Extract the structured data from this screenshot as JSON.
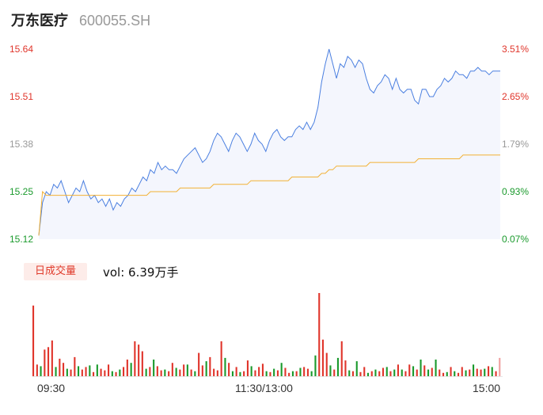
{
  "header": {
    "stock_name": "万东医疗",
    "stock_code": "600055.SH"
  },
  "chart_data": [
    {
      "type": "line",
      "series": [
        {
          "role": "price",
          "color": "#4a7fe0"
        },
        {
          "role": "average",
          "color": "#f2b134"
        }
      ],
      "left_axis_ticks": [
        "15.64",
        "15.51",
        "15.38",
        "15.25",
        "15.12"
      ],
      "right_axis_ticks": [
        "3.51%",
        "2.65%",
        "1.79%",
        "0.93%",
        "0.07%"
      ],
      "ylim": [
        15.12,
        15.64
      ],
      "colors": {
        "up": "#e0352b",
        "down": "#1a9a2c",
        "neutral": "#999999"
      },
      "price": [
        15.13,
        15.22,
        15.25,
        15.24,
        15.27,
        15.26,
        15.28,
        15.25,
        15.22,
        15.24,
        15.26,
        15.25,
        15.28,
        15.25,
        15.23,
        15.24,
        15.22,
        15.23,
        15.21,
        15.23,
        15.2,
        15.22,
        15.21,
        15.23,
        15.24,
        15.26,
        15.25,
        15.27,
        15.29,
        15.28,
        15.31,
        15.3,
        15.33,
        15.31,
        15.32,
        15.31,
        15.31,
        15.3,
        15.32,
        15.34,
        15.35,
        15.36,
        15.37,
        15.35,
        15.33,
        15.34,
        15.36,
        15.39,
        15.41,
        15.4,
        15.38,
        15.36,
        15.39,
        15.41,
        15.4,
        15.38,
        15.36,
        15.38,
        15.41,
        15.39,
        15.38,
        15.36,
        15.39,
        15.41,
        15.42,
        15.4,
        15.39,
        15.4,
        15.4,
        15.42,
        15.43,
        15.42,
        15.44,
        15.42,
        15.44,
        15.48,
        15.55,
        15.6,
        15.64,
        15.6,
        15.56,
        15.6,
        15.59,
        15.62,
        15.61,
        15.59,
        15.61,
        15.6,
        15.56,
        15.53,
        15.52,
        15.54,
        15.55,
        15.57,
        15.56,
        15.53,
        15.56,
        15.53,
        15.52,
        15.53,
        15.53,
        15.5,
        15.49,
        15.53,
        15.53,
        15.51,
        15.51,
        15.53,
        15.54,
        15.56,
        15.55,
        15.56,
        15.58,
        15.57,
        15.57,
        15.56,
        15.58,
        15.58,
        15.59,
        15.58,
        15.58,
        15.57,
        15.58,
        15.58,
        15.58
      ],
      "average": [
        15.13,
        15.25,
        15.24,
        15.24,
        15.24,
        15.24,
        15.24,
        15.24,
        15.24,
        15.24,
        15.24,
        15.24,
        15.24,
        15.24,
        15.24,
        15.24,
        15.24,
        15.24,
        15.24,
        15.24,
        15.24,
        15.24,
        15.24,
        15.24,
        15.24,
        15.24,
        15.24,
        15.24,
        15.24,
        15.24,
        15.25,
        15.25,
        15.25,
        15.25,
        15.25,
        15.25,
        15.25,
        15.25,
        15.26,
        15.26,
        15.26,
        15.26,
        15.26,
        15.26,
        15.26,
        15.26,
        15.26,
        15.27,
        15.27,
        15.27,
        15.27,
        15.27,
        15.27,
        15.27,
        15.27,
        15.27,
        15.27,
        15.28,
        15.28,
        15.28,
        15.28,
        15.28,
        15.28,
        15.28,
        15.28,
        15.28,
        15.28,
        15.28,
        15.29,
        15.29,
        15.29,
        15.29,
        15.29,
        15.29,
        15.29,
        15.29,
        15.3,
        15.3,
        15.31,
        15.31,
        15.32,
        15.32,
        15.32,
        15.32,
        15.32,
        15.32,
        15.32,
        15.32,
        15.32,
        15.33,
        15.33,
        15.33,
        15.33,
        15.33,
        15.33,
        15.33,
        15.33,
        15.33,
        15.33,
        15.33,
        15.33,
        15.33,
        15.34,
        15.34,
        15.34,
        15.34,
        15.34,
        15.34,
        15.34,
        15.34,
        15.34,
        15.34,
        15.34,
        15.34,
        15.35,
        15.35,
        15.35,
        15.35,
        15.35,
        15.35,
        15.35,
        15.35,
        15.35,
        15.35,
        15.35
      ]
    },
    {
      "type": "bar",
      "badge": "日成交量",
      "vol_text": "vol: 6.39万手",
      "time_labels": [
        "09:30",
        "11:30/13:00",
        "15:00"
      ],
      "volumes": [
        85,
        14,
        12,
        32,
        35,
        43,
        11,
        21,
        16,
        9,
        8,
        23,
        12,
        8,
        11,
        13,
        5,
        14,
        9,
        7,
        14,
        6,
        5,
        8,
        11,
        20,
        16,
        42,
        38,
        30,
        9,
        11,
        20,
        12,
        7,
        8,
        6,
        16,
        10,
        8,
        14,
        14,
        8,
        6,
        28,
        13,
        18,
        23,
        9,
        7,
        42,
        22,
        16,
        6,
        11,
        5,
        6,
        19,
        12,
        7,
        11,
        15,
        6,
        5,
        9,
        7,
        16,
        10,
        4,
        6,
        6,
        10,
        11,
        9,
        6,
        25,
        100,
        44,
        28,
        13,
        8,
        22,
        42,
        19,
        7,
        6,
        18,
        5,
        11,
        4,
        6,
        8,
        6,
        10,
        11,
        6,
        8,
        14,
        8,
        6,
        14,
        12,
        8,
        20,
        13,
        8,
        10,
        20,
        8,
        4,
        5,
        11,
        6,
        4,
        11,
        7,
        8,
        14,
        9,
        8,
        9,
        12,
        11,
        6,
        22
      ],
      "directions": [
        "u",
        "u",
        "d",
        "u",
        "u",
        "u",
        "d",
        "u",
        "u",
        "d",
        "u",
        "u",
        "d",
        "u",
        "u",
        "d",
        "u",
        "d",
        "u",
        "u",
        "u",
        "d",
        "u",
        "d",
        "u",
        "u",
        "d",
        "u",
        "u",
        "u",
        "d",
        "u",
        "d",
        "u",
        "u",
        "d",
        "u",
        "u",
        "d",
        "u",
        "u",
        "d",
        "u",
        "d",
        "u",
        "u",
        "d",
        "u",
        "u",
        "u",
        "u",
        "d",
        "u",
        "d",
        "u",
        "d",
        "u",
        "u",
        "d",
        "u",
        "u",
        "u",
        "d",
        "u",
        "d",
        "u",
        "d",
        "u",
        "u",
        "d",
        "u",
        "d",
        "u",
        "u",
        "d",
        "d",
        "u",
        "u",
        "u",
        "d",
        "u",
        "d",
        "u",
        "u",
        "d",
        "u",
        "d",
        "u",
        "u",
        "d",
        "u",
        "d",
        "u",
        "u",
        "d",
        "u",
        "d",
        "u",
        "d",
        "u",
        "u",
        "d",
        "u",
        "d",
        "u",
        "d",
        "u",
        "d",
        "u",
        "u",
        "d",
        "u",
        "d",
        "u",
        "u",
        "d",
        "u",
        "d",
        "u",
        "u",
        "d",
        "u",
        "d",
        "u",
        "n"
      ]
    }
  ]
}
